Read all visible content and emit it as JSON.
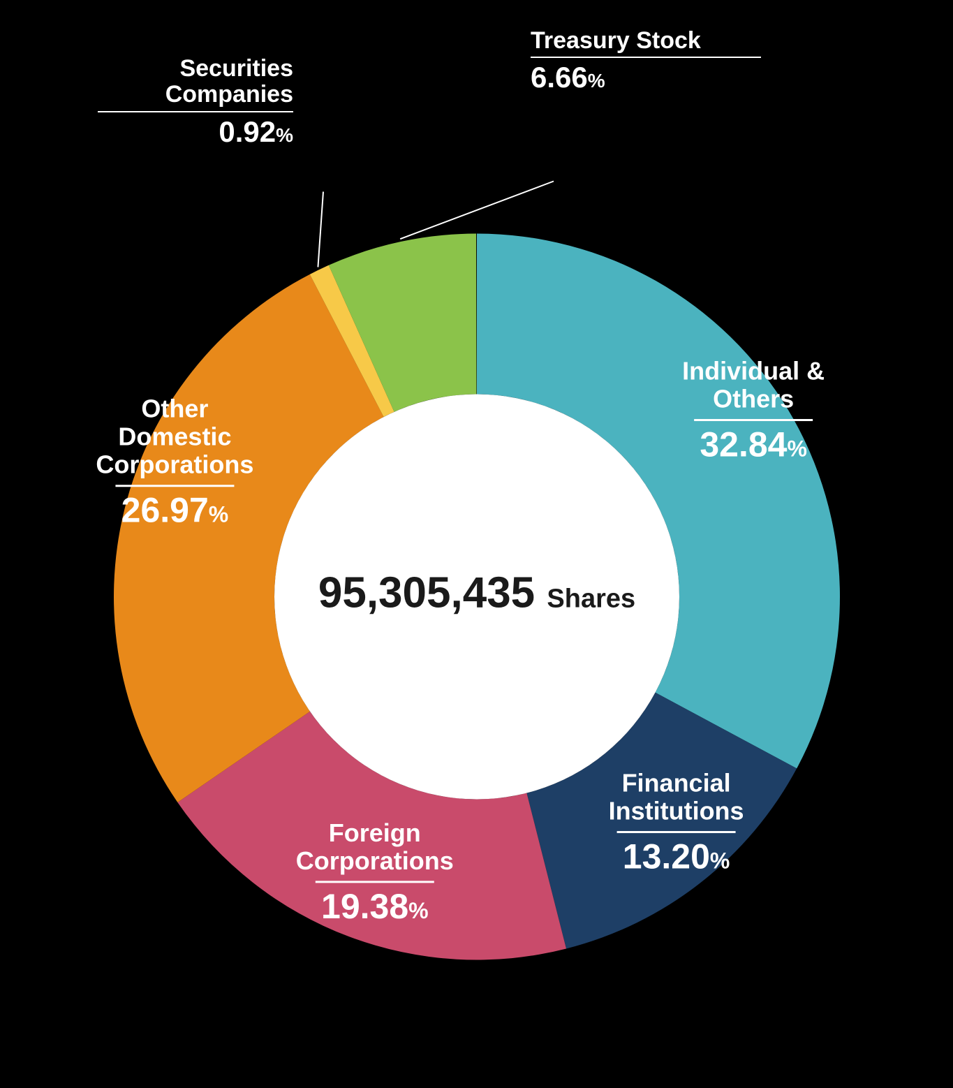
{
  "chart": {
    "type": "pie",
    "center_value": "95,305,435",
    "center_unit": "Shares",
    "background_color": "#000000",
    "inner_circle_color": "#ffffff",
    "slices": [
      {
        "label": "Individual &\nOthers",
        "value": 32.84,
        "color": "#4bb3bf",
        "label_location": "inside"
      },
      {
        "label": "Financial\nInstitutions",
        "value": 13.2,
        "color": "#1e3f66",
        "label_location": "inside"
      },
      {
        "label": "Foreign\nCorporations",
        "value": 19.38,
        "color": "#c94b6b",
        "label_location": "inside"
      },
      {
        "label": "Other\nDomestic\nCorporations",
        "value": 26.97,
        "color": "#e8891a",
        "label_location": "inside"
      },
      {
        "label": "Securities\nCompanies",
        "value": 0.92,
        "color": "#f7c948",
        "label_location": "outside_left"
      },
      {
        "label": "Treasury Stock",
        "value": 6.66,
        "color": "#8bc34a",
        "label_location": "outside_right"
      }
    ],
    "outer_radius": 520,
    "inner_radius": 290,
    "start_angle_deg": -90,
    "label_text_color": "#ffffff",
    "center_text_color": "#1a1a1a",
    "fonts": {
      "inner_name_size": 36,
      "inner_pct_size": 50,
      "inner_pct_sym_size": 32,
      "outer_name_size": 34,
      "outer_pct_size": 42,
      "outer_pct_sym_size": 28,
      "center_number_size": 62,
      "center_unit_size": 38
    }
  }
}
